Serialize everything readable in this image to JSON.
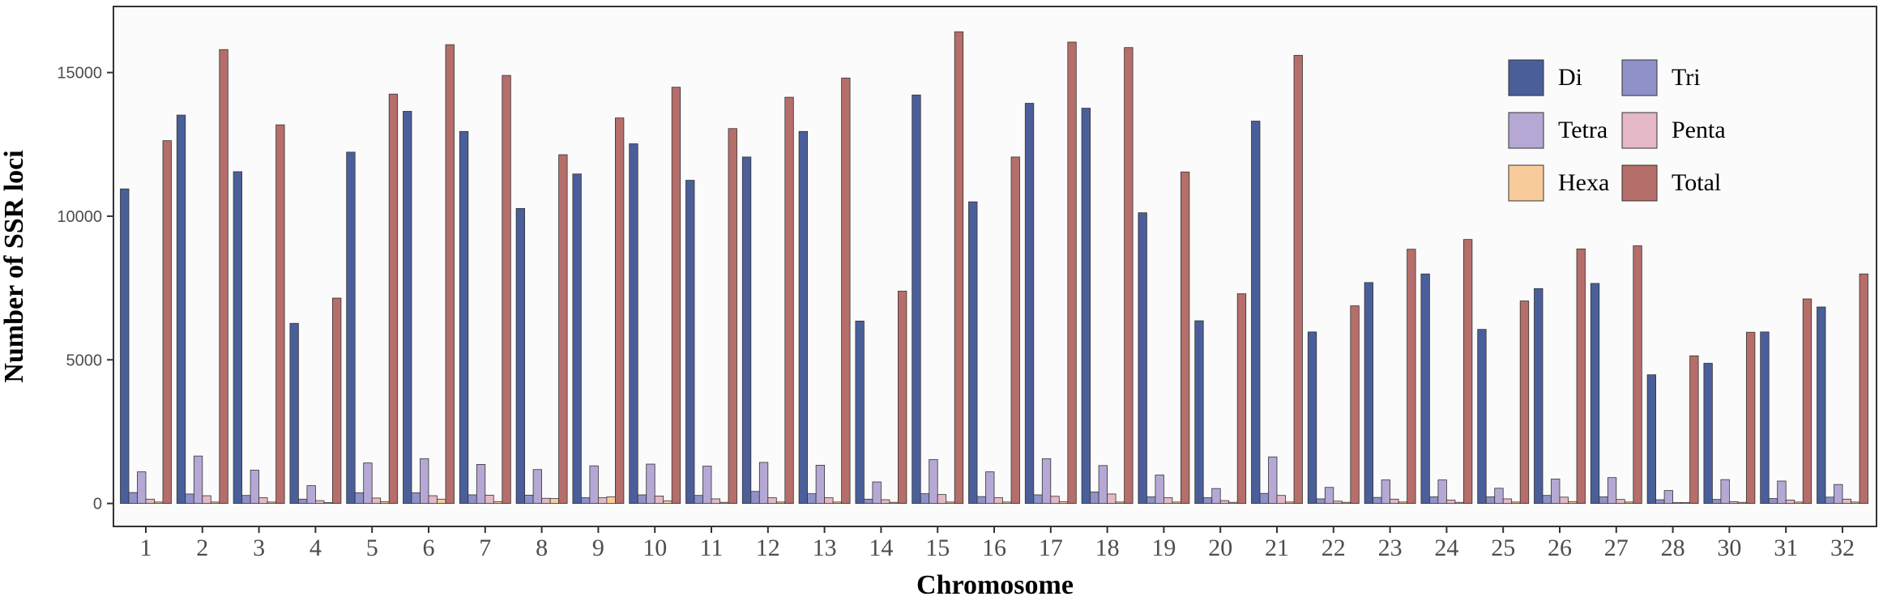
{
  "chart_data": {
    "type": "bar",
    "xlabel": "Chromosome",
    "ylabel": "Number of SSR loci",
    "ylim": [
      -800,
      17300
    ],
    "yticks": [
      0,
      5000,
      10000,
      15000
    ],
    "grid": false,
    "legend_position": "top-right",
    "categories": [
      "1",
      "2",
      "3",
      "4",
      "5",
      "6",
      "7",
      "8",
      "9",
      "10",
      "11",
      "12",
      "13",
      "14",
      "15",
      "16",
      "17",
      "18",
      "19",
      "20",
      "21",
      "22",
      "23",
      "24",
      "25",
      "26",
      "27",
      "28",
      "30",
      "31",
      "32"
    ],
    "series": [
      {
        "name": "Di",
        "color": "#4a5f9a",
        "values": [
          10950,
          13520,
          11550,
          6270,
          12230,
          13650,
          12950,
          10270,
          11470,
          12520,
          11250,
          12060,
          12950,
          6350,
          14220,
          10500,
          13930,
          13760,
          10120,
          6360,
          13310,
          5970,
          7690,
          7990,
          6060,
          7480,
          7660,
          4480,
          4880,
          5970,
          6840
        ]
      },
      {
        "name": "Tri",
        "color": "#8e92c8",
        "values": [
          380,
          330,
          280,
          150,
          370,
          370,
          300,
          290,
          200,
          300,
          280,
          420,
          340,
          150,
          340,
          240,
          300,
          400,
          230,
          200,
          350,
          160,
          210,
          230,
          230,
          280,
          230,
          130,
          140,
          170,
          220
        ]
      },
      {
        "name": "Tetra",
        "color": "#b6a8d4",
        "values": [
          1100,
          1650,
          1160,
          620,
          1410,
          1560,
          1360,
          1180,
          1310,
          1370,
          1300,
          1430,
          1330,
          750,
          1530,
          1100,
          1560,
          1320,
          990,
          520,
          1620,
          560,
          820,
          820,
          530,
          850,
          900,
          450,
          830,
          780,
          660
        ]
      },
      {
        "name": "Penta",
        "color": "#e4b8c6",
        "values": [
          150,
          270,
          200,
          100,
          190,
          270,
          290,
          180,
          200,
          260,
          160,
          200,
          200,
          130,
          310,
          200,
          250,
          330,
          200,
          100,
          280,
          80,
          150,
          120,
          160,
          220,
          140,
          30,
          60,
          120,
          150
        ]
      },
      {
        "name": "Hexa",
        "color": "#f8cc9a",
        "values": [
          50,
          50,
          50,
          30,
          60,
          150,
          60,
          170,
          230,
          90,
          40,
          50,
          50,
          40,
          50,
          50,
          60,
          50,
          50,
          40,
          50,
          40,
          50,
          40,
          50,
          60,
          50,
          30,
          40,
          50,
          50
        ]
      },
      {
        "name": "Total",
        "color": "#b56e6a",
        "values": [
          12630,
          15800,
          13180,
          7150,
          14250,
          15970,
          14900,
          12140,
          13420,
          14490,
          13050,
          14140,
          14810,
          7390,
          16420,
          12060,
          16060,
          15870,
          11540,
          7300,
          15600,
          6880,
          8850,
          9190,
          7050,
          8860,
          8970,
          5140,
          5960,
          7120,
          7990
        ]
      }
    ]
  }
}
